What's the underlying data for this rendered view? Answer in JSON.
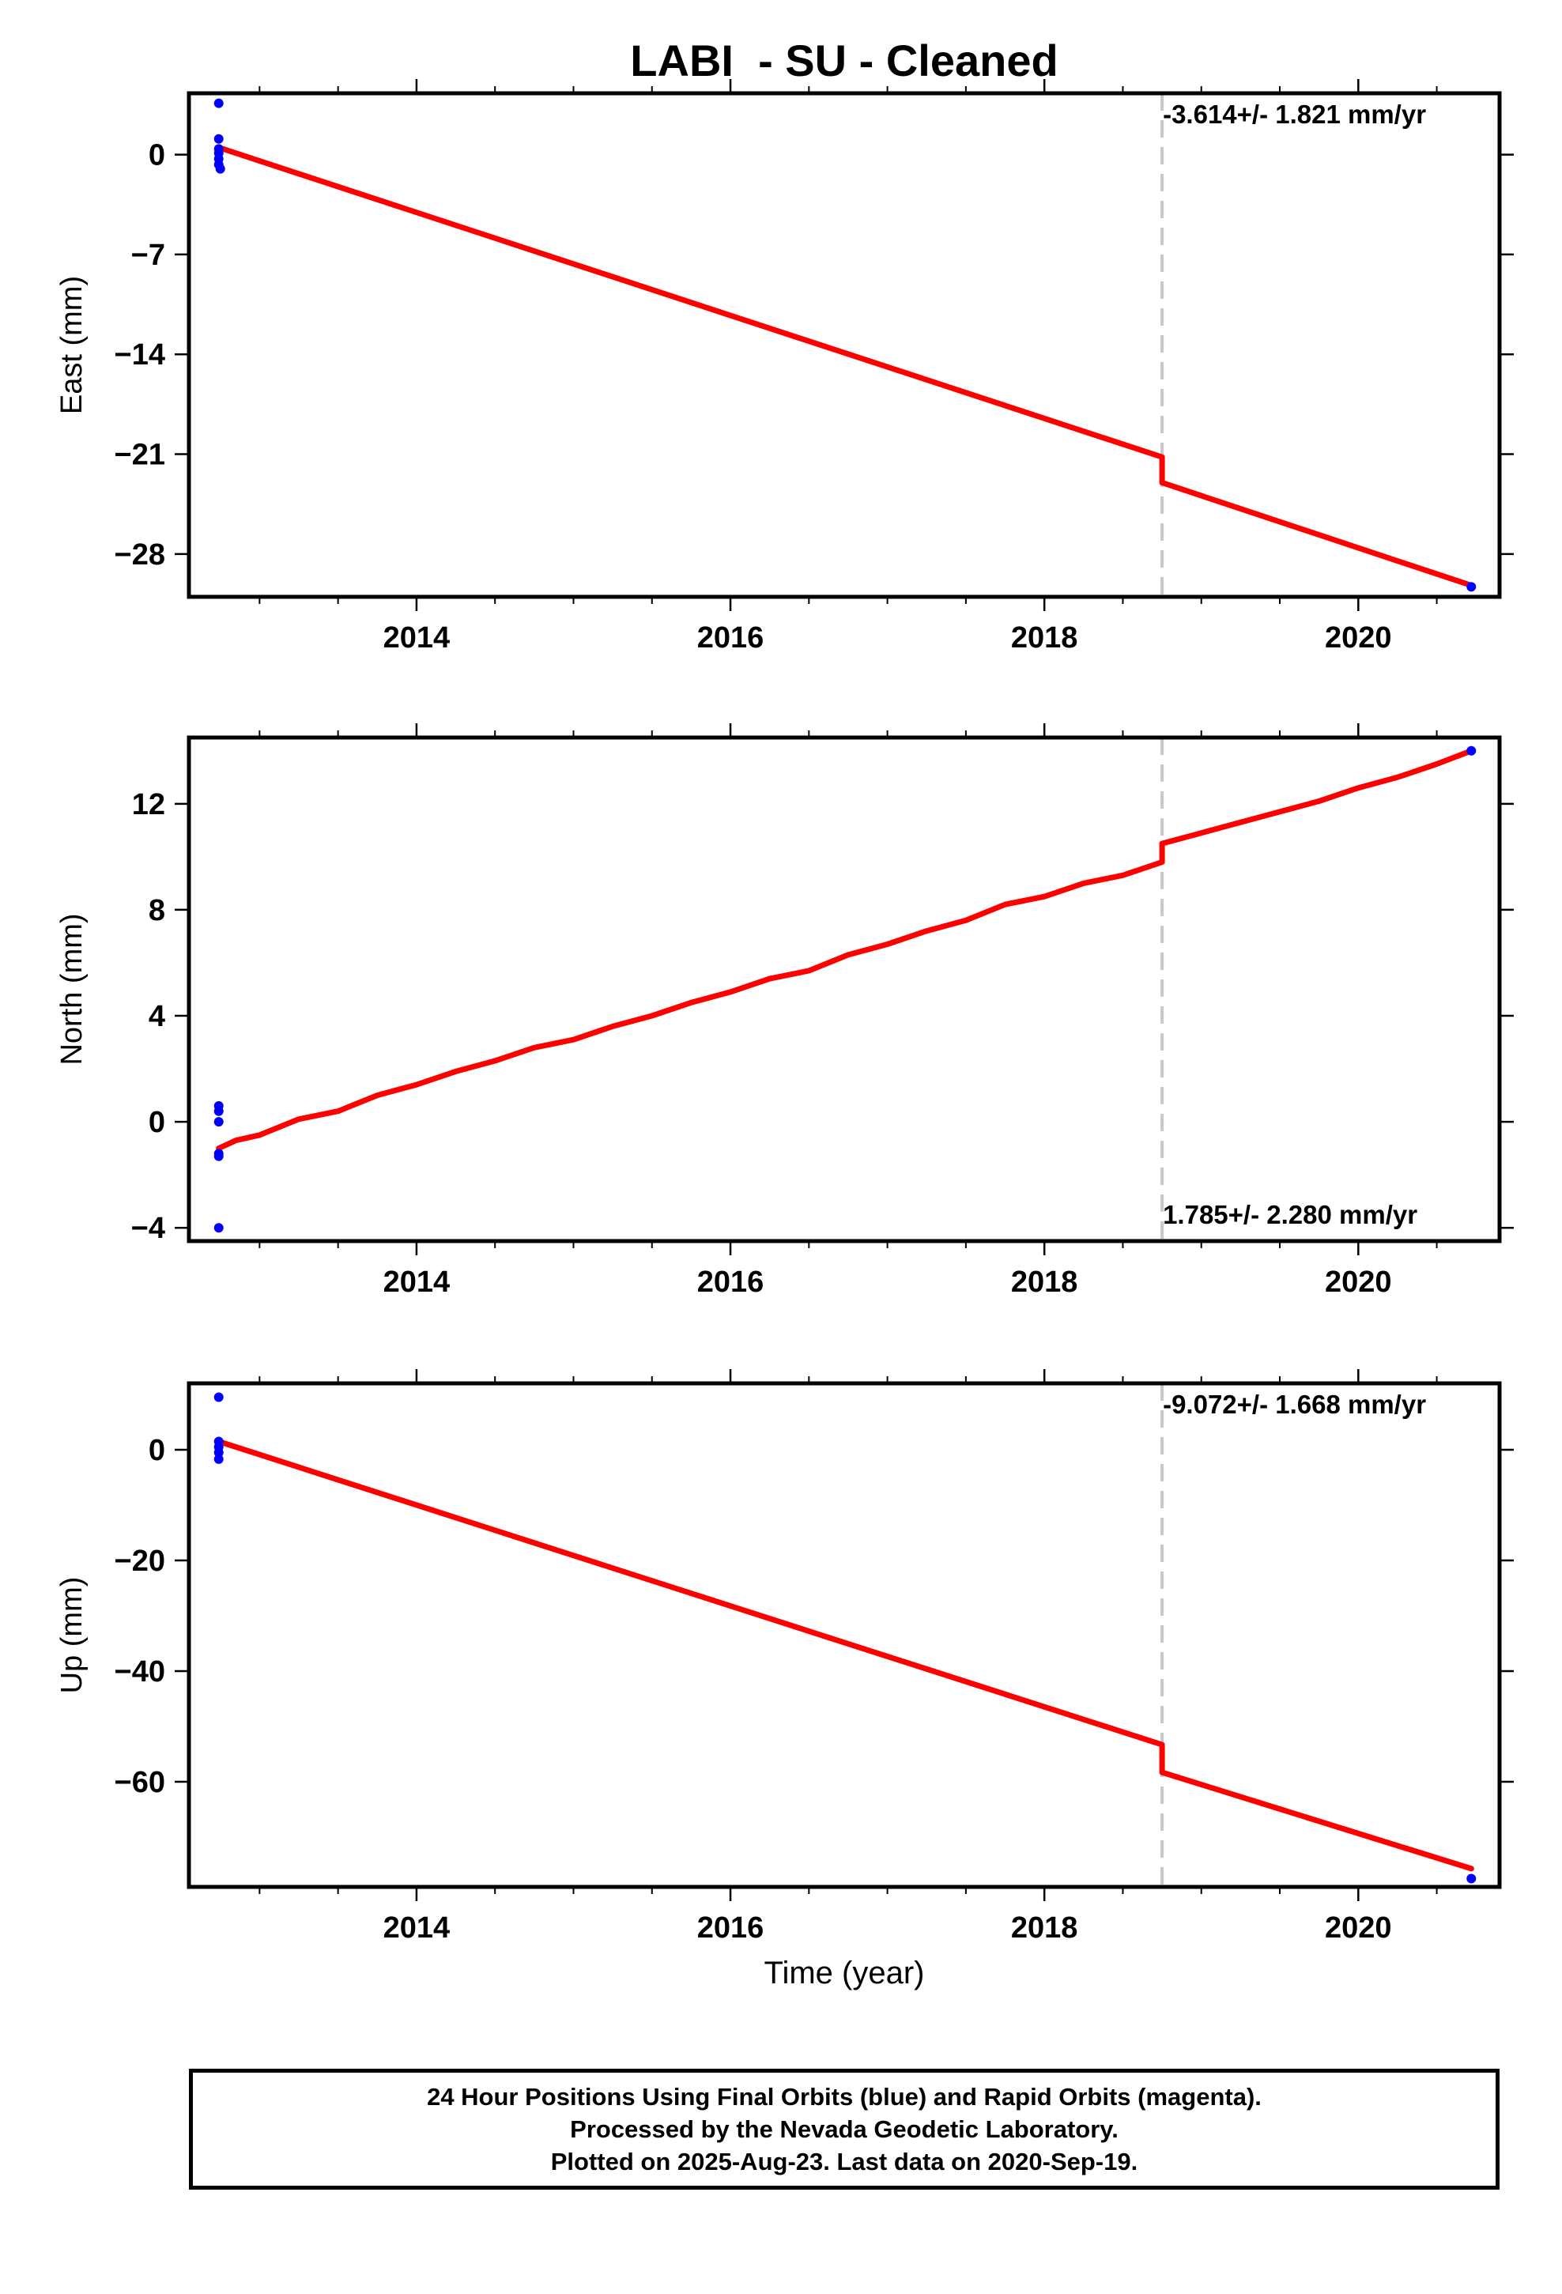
{
  "title": "LABI  - SU - Cleaned",
  "footer": {
    "line1": "24 Hour Positions Using Final Orbits (blue) and Rapid Orbits (magenta).",
    "line2": "Processed by the Nevada Geodetic Laboratory.",
    "line3": "Plotted on 2025-Aug-23. Last data on 2020-Sep-19."
  },
  "colors": {
    "final_orbits": "#0000ff",
    "model_fit": "#ff0000",
    "offset_line": "#c8c8c8",
    "axis": "#000000"
  },
  "chart_data": [
    {
      "type": "scatter",
      "panel": "east",
      "xlabel": "",
      "ylabel": "East (mm)",
      "xlim": [
        2012.55,
        2020.9
      ],
      "ylim": [
        -31,
        4.3
      ],
      "xticks": [
        2014,
        2016,
        2018,
        2020
      ],
      "yticks": [
        0,
        -7,
        -14,
        -21,
        -28
      ],
      "rate_label": "-3.614+/- 1.821 mm/yr",
      "rate_label_position": "top",
      "offset_epoch": 2018.75,
      "final_orbit_points": {
        "x": [
          2012.74,
          2012.74,
          2012.74,
          2012.74,
          2012.74,
          2012.74,
          2012.75,
          2020.72
        ],
        "y": [
          3.6,
          1.1,
          0.4,
          0.1,
          -0.3,
          -0.7,
          -1.0,
          -30.3
        ]
      },
      "fit_line": {
        "x": [
          2012.74,
          2018.75,
          2018.75,
          2020.72
        ],
        "y": [
          0.5,
          -21.2,
          -23.0,
          -30.2
        ]
      }
    },
    {
      "type": "scatter",
      "panel": "north",
      "xlabel": "",
      "ylabel": "North (mm)",
      "xlim": [
        2012.55,
        2020.9
      ],
      "ylim": [
        -4.5,
        14.5
      ],
      "xticks": [
        2014,
        2016,
        2018,
        2020
      ],
      "yticks": [
        12,
        8,
        4,
        0,
        -4
      ],
      "rate_label": "1.785+/- 2.280 mm/yr",
      "rate_label_position": "bottom",
      "offset_epoch": 2018.75,
      "final_orbit_points": {
        "x": [
          2012.74,
          2012.74,
          2012.74,
          2012.74,
          2012.74,
          2012.74,
          2020.72
        ],
        "y": [
          0.6,
          0.4,
          0.0,
          -1.2,
          -1.3,
          -4.0,
          14.0
        ]
      },
      "fit_line": {
        "x": [
          2012.74,
          2012.85,
          2013.0,
          2013.25,
          2013.5,
          2013.75,
          2014.0,
          2014.25,
          2014.5,
          2014.75,
          2015.0,
          2015.25,
          2015.5,
          2015.75,
          2016.0,
          2016.25,
          2016.5,
          2016.75,
          2017.0,
          2017.25,
          2017.5,
          2017.75,
          2018.0,
          2018.25,
          2018.5,
          2018.75,
          2018.75,
          2019.0,
          2019.25,
          2019.5,
          2019.75,
          2020.0,
          2020.25,
          2020.5,
          2020.72
        ],
        "y": [
          -1.0,
          -0.7,
          -0.5,
          0.1,
          0.4,
          1.0,
          1.4,
          1.9,
          2.3,
          2.8,
          3.1,
          3.6,
          4.0,
          4.5,
          4.9,
          5.4,
          5.7,
          6.3,
          6.7,
          7.2,
          7.6,
          8.2,
          8.5,
          9.0,
          9.3,
          9.8,
          10.5,
          10.9,
          11.3,
          11.7,
          12.1,
          12.6,
          13.0,
          13.5,
          14.0
        ]
      }
    },
    {
      "type": "scatter",
      "panel": "up",
      "xlabel": "Time (year)",
      "ylabel": "Up (mm)",
      "xlim": [
        2012.55,
        2020.9
      ],
      "ylim": [
        -79,
        12
      ],
      "xticks": [
        2014,
        2016,
        2018,
        2020
      ],
      "yticks": [
        0,
        -20,
        -40,
        -60
      ],
      "rate_label": "-9.072+/- 1.668 mm/yr",
      "rate_label_position": "top",
      "offset_epoch": 2018.75,
      "final_orbit_points": {
        "x": [
          2012.74,
          2012.74,
          2012.74,
          2012.74,
          2012.74,
          2020.72
        ],
        "y": [
          9.5,
          1.5,
          0.5,
          -0.5,
          -1.7,
          -77.5
        ]
      },
      "fit_line": {
        "x": [
          2012.74,
          2018.75,
          2018.75,
          2020.72
        ],
        "y": [
          1.5,
          -53.3,
          -58.3,
          -75.7
        ]
      }
    }
  ]
}
